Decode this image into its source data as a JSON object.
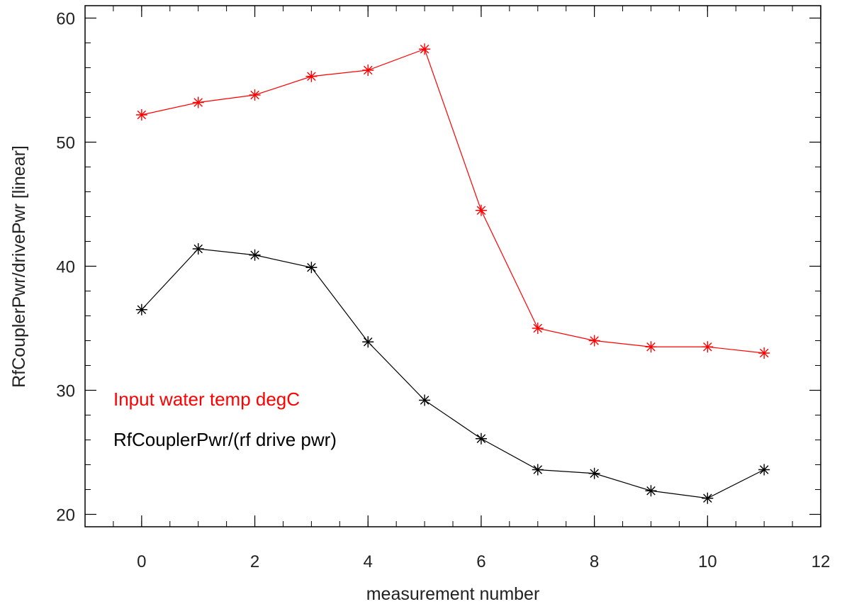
{
  "chart_data": {
    "type": "line",
    "xlabel": "measurement number",
    "ylabel": "RfCouplerPwr/drivePwr [linear]",
    "xlim": [
      -1,
      12
    ],
    "ylim": [
      19,
      61
    ],
    "xticks": [
      0,
      2,
      4,
      6,
      8,
      10,
      12
    ],
    "yticks": [
      20,
      30,
      40,
      50,
      60
    ],
    "grid": false,
    "marker": "asterisk",
    "legend_position": "lower-left",
    "series": [
      {
        "name": "Input water temp degC",
        "color": "#ff0000",
        "x": [
          0,
          1,
          2,
          3,
          4,
          5,
          6,
          7,
          8,
          9,
          10,
          11
        ],
        "y": [
          52.2,
          53.2,
          53.8,
          55.3,
          55.8,
          57.5,
          44.5,
          35.0,
          34.0,
          33.5,
          33.5,
          33.0
        ]
      },
      {
        "name": "RfCouplerPwr/(rf drive pwr)",
        "color": "#000000",
        "x": [
          0,
          1,
          2,
          3,
          4,
          5,
          6,
          7,
          8,
          9,
          10,
          11
        ],
        "y": [
          36.5,
          41.4,
          40.9,
          39.9,
          33.9,
          29.2,
          26.1,
          23.6,
          23.3,
          21.9,
          21.3,
          23.6
        ]
      }
    ]
  }
}
